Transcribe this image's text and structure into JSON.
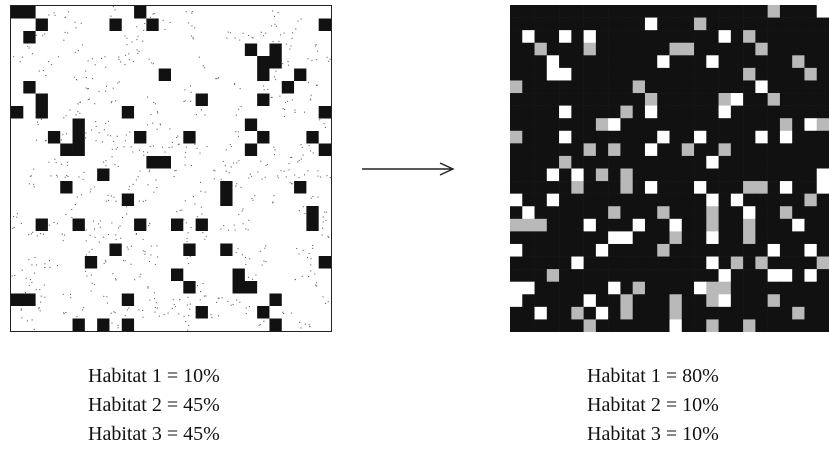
{
  "figure": {
    "arrow": "right-arrow",
    "left_panel": {
      "colors": {
        "habitat_1": "#111111",
        "habitat_2": "#ffffff",
        "habitat_3": "#ffffff"
      },
      "legend": [
        {
          "name": "Habitat 1",
          "value": "10%"
        },
        {
          "name": "Habitat 2",
          "value": "45%"
        },
        {
          "name": "Habitat 3",
          "value": "45%"
        }
      ],
      "separator": "="
    },
    "right_panel": {
      "colors": {
        "habitat_1": "#111111",
        "habitat_2": "#ffffff",
        "habitat_3": "#b9b9b9"
      },
      "legend": [
        {
          "name": "Habitat 1",
          "value": "80%"
        },
        {
          "name": "Habitat 2",
          "value": "10%"
        },
        {
          "name": "Habitat 3",
          "value": "10%"
        }
      ],
      "separator": "="
    }
  }
}
